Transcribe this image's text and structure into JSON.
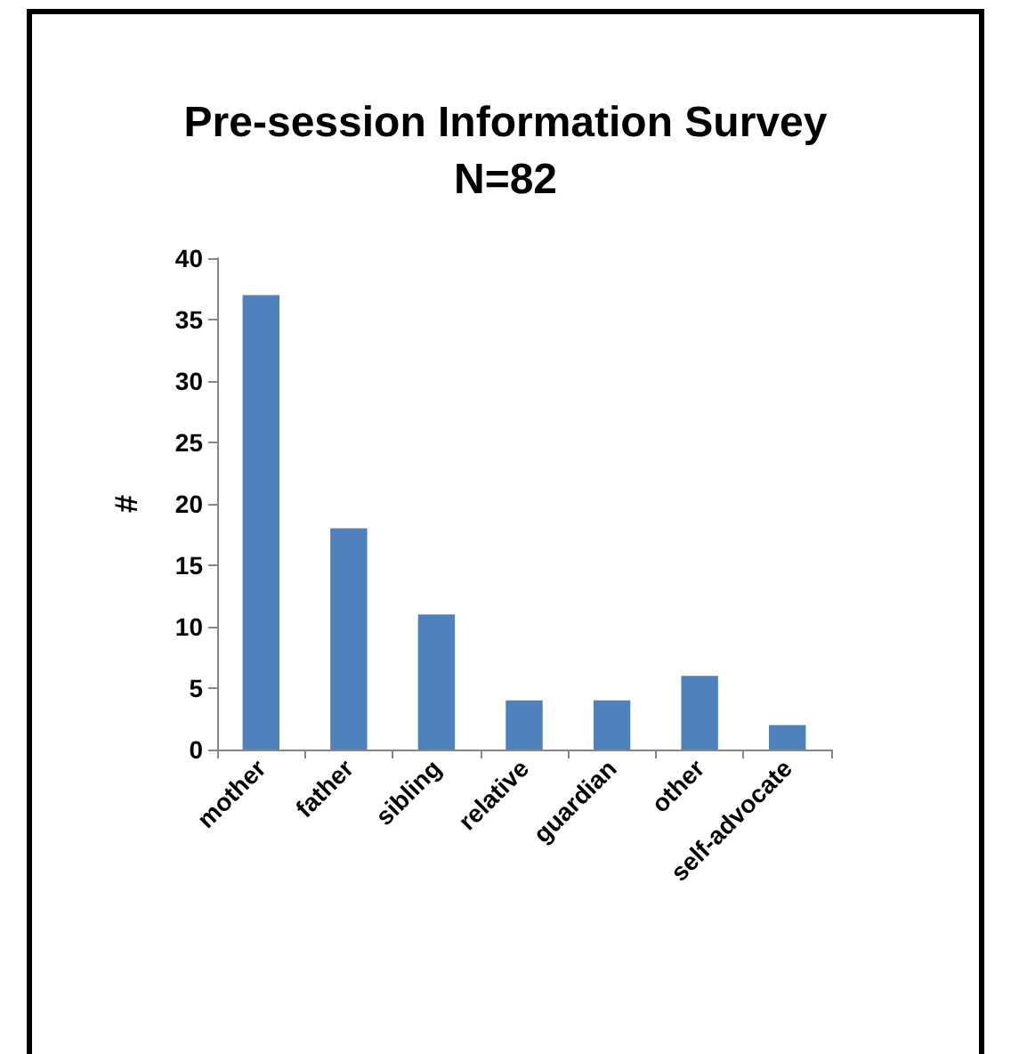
{
  "chart_data": {
    "type": "bar",
    "title": "Pre-session Information Survey",
    "subtitle": "N=82",
    "ylabel": "#",
    "categories": [
      "mother",
      "father",
      "sibling",
      "relative",
      "guardian",
      "other",
      "self-advocate"
    ],
    "values": [
      37,
      18,
      11,
      4,
      4,
      6,
      2
    ],
    "color": "#4f81bd",
    "ylim": [
      0,
      40
    ],
    "yticks": [
      0,
      5,
      10,
      15,
      20,
      25,
      30,
      35,
      40
    ],
    "grid": false
  }
}
